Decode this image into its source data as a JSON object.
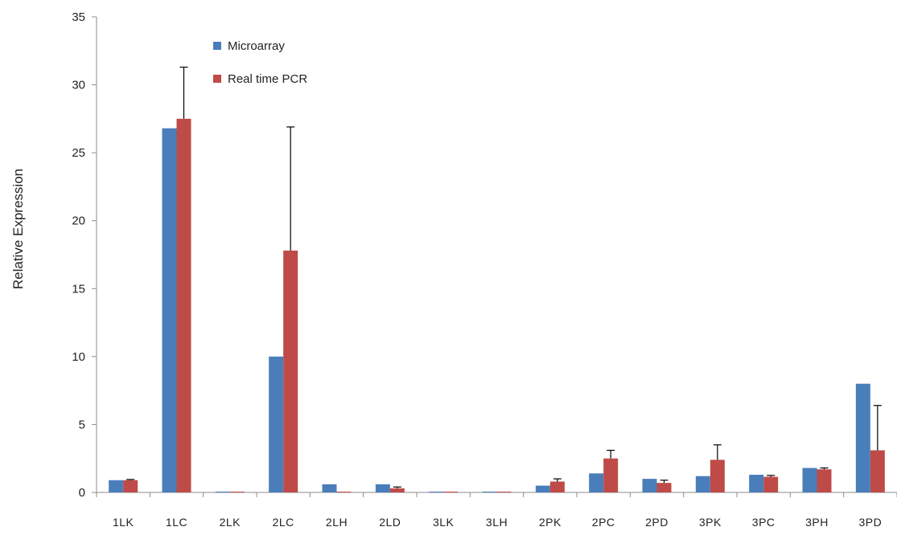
{
  "chart_data": {
    "type": "bar",
    "title": "",
    "xlabel": "",
    "ylabel": "Relative   Expression",
    "ylim": [
      0,
      35
    ],
    "yticks": [
      0,
      5,
      10,
      15,
      20,
      25,
      30,
      35
    ],
    "grid": false,
    "legend_position": "top-left",
    "categories": [
      "1LK",
      "1LC",
      "2LK",
      "2LC",
      "2LH",
      "2LD",
      "3LK",
      "3LH",
      "2PK",
      "2PC",
      "2PD",
      "3PK",
      "3PC",
      "3PH",
      "3PD"
    ],
    "series": [
      {
        "name": "Microarray",
        "color": "#4a7ebb",
        "values": [
          0.9,
          26.8,
          0.05,
          10.0,
          0.6,
          0.6,
          0.05,
          0.05,
          0.5,
          1.4,
          1.0,
          1.2,
          1.3,
          1.8,
          8.0
        ],
        "error": [
          0,
          0,
          0,
          0,
          0,
          0,
          0,
          0,
          0,
          0,
          0,
          0,
          0,
          0,
          0
        ]
      },
      {
        "name": "Real time PCR",
        "color": "#be4b48",
        "values": [
          0.9,
          27.5,
          0.05,
          17.8,
          0.05,
          0.3,
          0.05,
          0.05,
          0.8,
          2.5,
          0.7,
          2.4,
          1.15,
          1.7,
          3.1
        ],
        "error": [
          0.05,
          3.8,
          0,
          9.1,
          0,
          0.1,
          0,
          0,
          0.2,
          0.6,
          0.2,
          1.1,
          0.1,
          0.1,
          3.3
        ]
      }
    ]
  }
}
